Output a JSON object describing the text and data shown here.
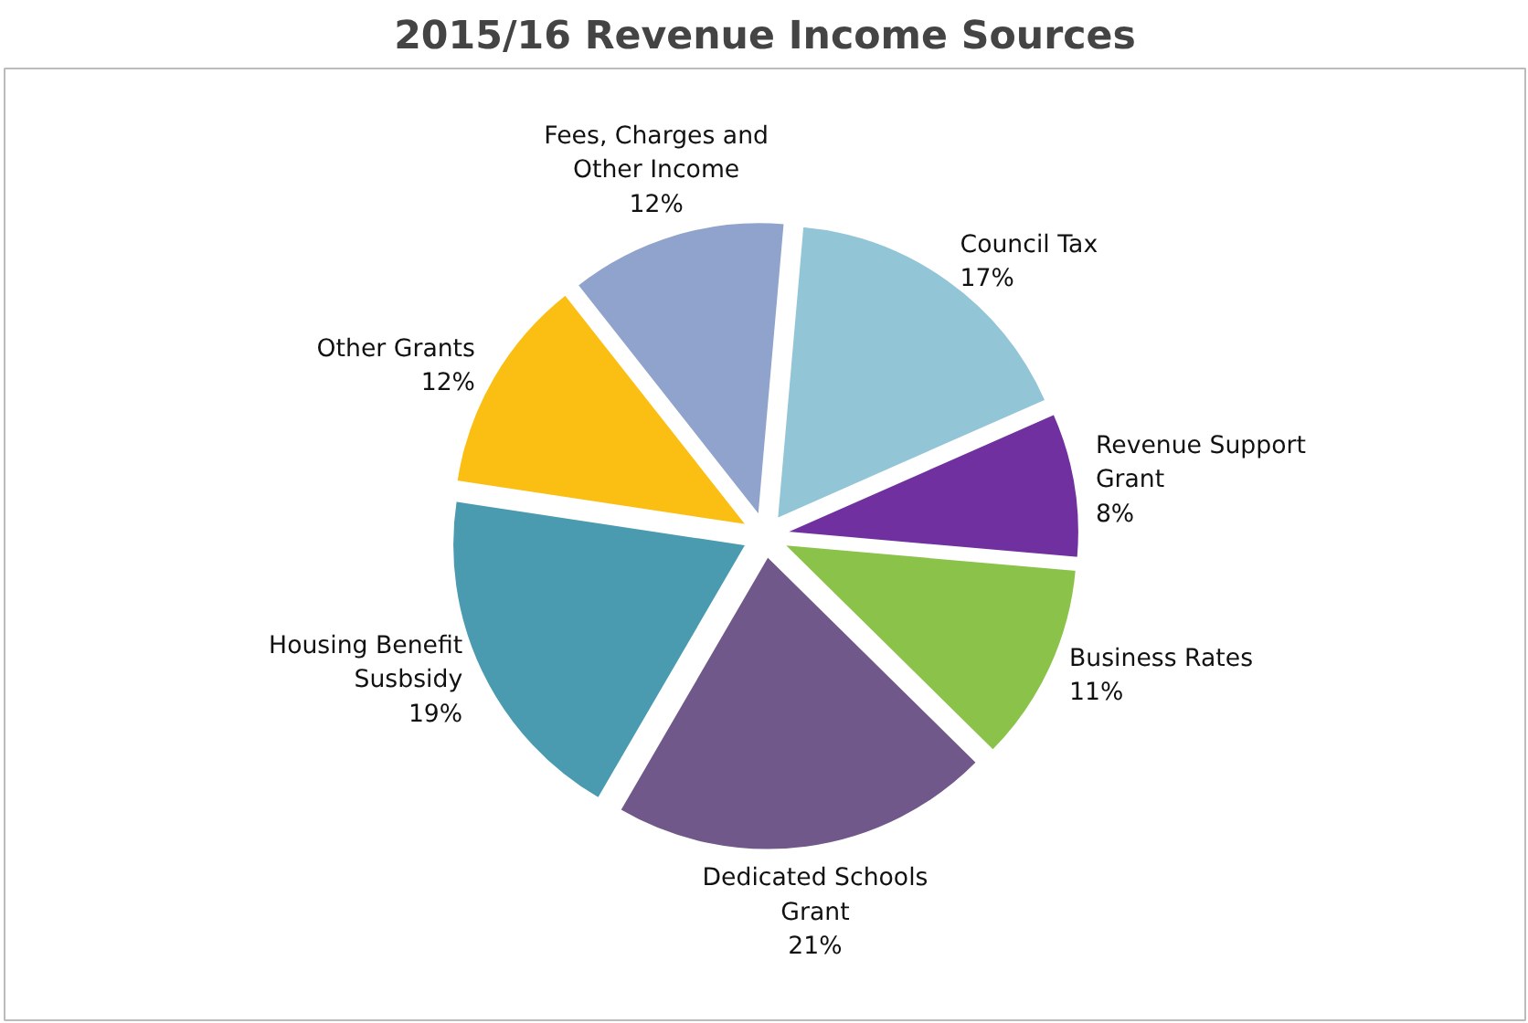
{
  "chart_data": {
    "type": "pie",
    "title": "2015/16 Revenue Income Sources",
    "categories": [
      "Council Tax",
      "Revenue Support Grant",
      "Business Rates",
      "Dedicated Schools Grant",
      "Housing Benefit Susbsidy",
      "Other Grants",
      "Fees, Charges and Other Income"
    ],
    "values": [
      17,
      8,
      11,
      21,
      19,
      12,
      12
    ],
    "value_labels": [
      "17%",
      "8%",
      "11%",
      "21%",
      "19%",
      "12%",
      "12%"
    ],
    "colors": [
      "#92c5d6",
      "#7030a0",
      "#8bc34a",
      "#70588a",
      "#4a9bb0",
      "#fbbf14",
      "#8fa3cc"
    ]
  }
}
